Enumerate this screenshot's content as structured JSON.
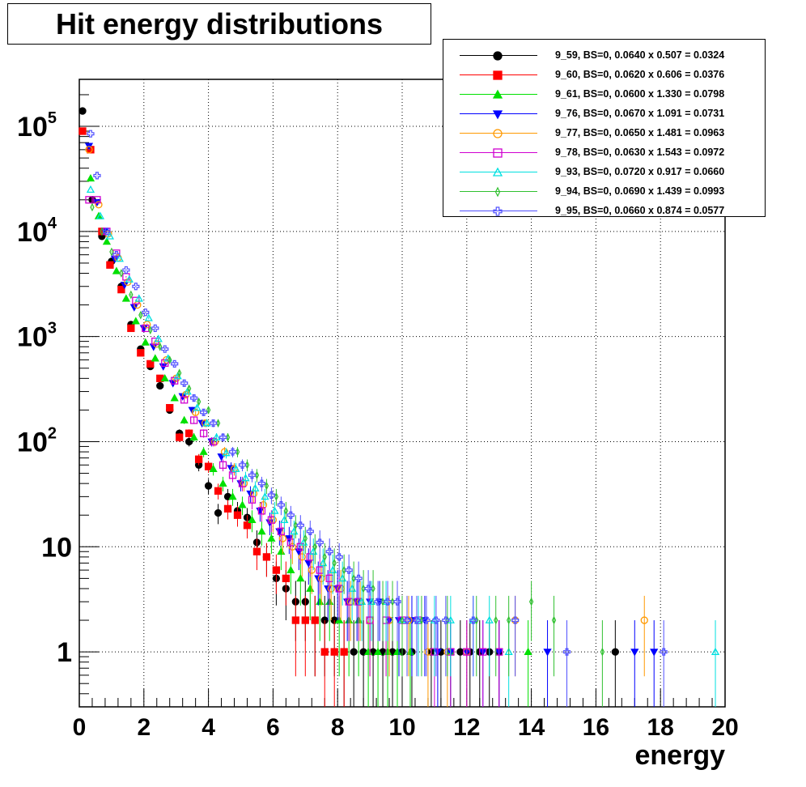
{
  "chart_data": {
    "type": "scatter",
    "title": "Hit energy distributions",
    "xlabel": "energy",
    "ylabel": "",
    "xlim": [
      0,
      20
    ],
    "ylim": [
      0.3,
      280000
    ],
    "yscale": "log",
    "grid": true,
    "legend_placement": "top-right",
    "x_ticks": [
      "0",
      "2",
      "4",
      "6",
      "8",
      "10",
      "12",
      "14",
      "16",
      "18",
      "20"
    ],
    "y_ticks": [
      {
        "value": 1,
        "base": "1",
        "exp": ""
      },
      {
        "value": 10,
        "base": "10",
        "exp": ""
      },
      {
        "value": 100,
        "base": "10",
        "exp": "2"
      },
      {
        "value": 1000,
        "base": "10",
        "exp": "3"
      },
      {
        "value": 10000,
        "base": "10",
        "exp": "4"
      },
      {
        "value": 100000,
        "base": "10",
        "exp": "5"
      }
    ],
    "series": [
      {
        "name": "9_59, BS=0, 0.0640 x 0.507 = 0.0324",
        "color": "#000000",
        "marker": "circle-filled",
        "x": [
          0.1,
          0.4,
          0.7,
          1.0,
          1.3,
          1.6,
          1.9,
          2.2,
          2.5,
          2.8,
          3.1,
          3.4,
          3.7,
          4.0,
          4.3,
          4.6,
          4.9,
          5.2,
          5.5,
          5.8,
          6.1,
          6.4,
          6.7,
          7.0,
          7.3,
          7.6,
          7.9,
          8.2,
          8.5,
          8.8,
          9.1,
          9.4,
          9.7,
          10.0,
          10.3,
          10.9,
          11.2,
          11.5,
          11.8,
          12.1,
          12.4,
          12.7,
          13.0,
          16.6
        ],
        "y": [
          140000,
          20000,
          9000,
          5200,
          3000,
          1300,
          760,
          520,
          340,
          200,
          120,
          100,
          60,
          38,
          21,
          30,
          22,
          19,
          11,
          8,
          5,
          4,
          3,
          3,
          2,
          2,
          2,
          1,
          1,
          1,
          1,
          1,
          1,
          1,
          1,
          1,
          1,
          1,
          1,
          1,
          1,
          1,
          1,
          1
        ]
      },
      {
        "name": "9_60, BS=0, 0.0620 x 0.606 = 0.0376",
        "color": "#ff0000",
        "marker": "square-filled",
        "x": [
          0.1,
          0.35,
          0.7,
          0.95,
          1.3,
          1.6,
          1.9,
          2.2,
          2.5,
          2.8,
          3.1,
          3.4,
          3.7,
          4.0,
          4.3,
          4.6,
          4.9,
          5.2,
          5.5,
          5.8,
          6.1,
          6.4,
          6.7,
          7.0,
          7.3,
          7.6,
          7.9,
          8.2
        ],
        "y": [
          90000,
          60000,
          10000,
          4800,
          2800,
          1200,
          700,
          550,
          400,
          210,
          110,
          120,
          68,
          58,
          34,
          23,
          20,
          16,
          9,
          8,
          6,
          5,
          2,
          2,
          2,
          1,
          1,
          1
        ]
      },
      {
        "name": "9_61, BS=0, 0.0600 x 1.330 = 0.0798",
        "color": "#00e000",
        "marker": "triangle-up-filled",
        "x": [
          0.35,
          0.6,
          0.85,
          1.15,
          1.45,
          1.75,
          2.05,
          2.35,
          2.65,
          2.95,
          3.25,
          3.55,
          3.85,
          4.15,
          4.45,
          4.75,
          5.05,
          5.35,
          5.65,
          5.95,
          6.25,
          6.55,
          6.85,
          7.15,
          7.45,
          7.75,
          8.05,
          8.35,
          8.65,
          8.95,
          9.25,
          9.55,
          9.85,
          10.25,
          11.5,
          13.9
        ],
        "y": [
          32000,
          14000,
          8000,
          4200,
          2300,
          1400,
          880,
          620,
          400,
          260,
          160,
          110,
          80,
          55,
          40,
          30,
          25,
          18,
          14,
          12,
          9,
          6,
          5,
          4,
          3,
          3,
          2,
          2,
          2,
          1,
          1,
          1,
          1,
          1,
          1,
          1
        ]
      },
      {
        "name": "9_76, BS=0, 0.0670 x 1.091 = 0.0731",
        "color": "#0000ff",
        "marker": "triangle-down-filled",
        "x": [
          0.3,
          0.55,
          0.8,
          1.1,
          1.4,
          1.7,
          2.0,
          2.3,
          2.6,
          2.9,
          3.2,
          3.5,
          3.8,
          4.1,
          4.4,
          4.7,
          5.0,
          5.3,
          5.6,
          5.9,
          6.2,
          6.5,
          6.8,
          7.1,
          7.4,
          7.7,
          8.0,
          8.3,
          8.6,
          9.0,
          9.3,
          9.6,
          9.9,
          10.3,
          10.7,
          11.1,
          11.5,
          12.0,
          12.5,
          13.0,
          14.5,
          17.2,
          17.8
        ],
        "y": [
          65000,
          19000,
          10000,
          5500,
          3100,
          1900,
          1200,
          800,
          520,
          360,
          270,
          200,
          150,
          100,
          72,
          56,
          40,
          32,
          22,
          17,
          14,
          12,
          9,
          7,
          5,
          4,
          4,
          3,
          3,
          3,
          3,
          2,
          2,
          2,
          2,
          1,
          1,
          1,
          1,
          1,
          1,
          1,
          1
        ]
      },
      {
        "name": "9_77, BS=0, 0.0650 x 1.481 = 0.0963",
        "color": "#ff9900",
        "marker": "circle-open",
        "x": [
          0.3,
          0.6,
          0.9,
          1.2,
          1.5,
          1.8,
          2.1,
          2.4,
          2.7,
          3.0,
          3.3,
          3.6,
          3.9,
          4.2,
          4.5,
          4.8,
          5.1,
          5.4,
          5.7,
          6.0,
          6.3,
          6.6,
          6.9,
          7.2,
          7.5,
          7.8,
          8.1,
          8.4,
          8.7,
          9.0,
          9.6,
          10.2,
          10.8,
          11.4,
          12.0,
          13.5,
          17.5
        ],
        "y": [
          60000,
          18000,
          9500,
          5600,
          3300,
          2000,
          1300,
          850,
          600,
          400,
          280,
          190,
          150,
          100,
          80,
          55,
          40,
          32,
          25,
          18,
          12,
          10,
          8,
          6,
          5,
          4,
          4,
          3,
          3,
          2,
          2,
          2,
          1,
          1,
          1,
          2,
          2
        ]
      },
      {
        "name": "9_78, BS=0, 0.0630 x 1.543 = 0.0972",
        "color": "#d000d0",
        "marker": "square-open",
        "x": [
          0.3,
          0.55,
          0.85,
          1.15,
          1.45,
          1.75,
          2.05,
          2.35,
          2.65,
          2.95,
          3.25,
          3.55,
          3.85,
          4.15,
          4.45,
          4.75,
          5.05,
          5.35,
          5.65,
          5.95,
          6.25,
          6.55,
          6.85,
          7.15,
          7.45,
          7.75,
          8.05,
          8.35,
          8.65,
          9.0,
          9.5,
          10.0,
          10.5,
          11.0,
          11.5,
          12.0,
          12.5,
          13.0
        ],
        "y": [
          20000,
          20000,
          10000,
          6200,
          3700,
          2200,
          1200,
          900,
          560,
          380,
          250,
          160,
          120,
          100,
          60,
          48,
          40,
          28,
          22,
          18,
          14,
          11,
          10,
          8,
          6,
          5,
          4,
          3,
          3,
          2,
          2,
          2,
          2,
          1,
          1,
          1,
          1,
          1
        ]
      },
      {
        "name": "9_93, BS=0, 0.0720 x 0.917 = 0.0660",
        "color": "#00e0e0",
        "marker": "triangle-up-open",
        "x": [
          0.35,
          0.65,
          0.95,
          1.25,
          1.55,
          1.85,
          2.15,
          2.45,
          2.75,
          3.05,
          3.35,
          3.65,
          3.95,
          4.25,
          4.55,
          4.85,
          5.15,
          5.45,
          5.75,
          6.05,
          6.35,
          6.65,
          6.95,
          7.25,
          7.55,
          7.85,
          8.15,
          8.45,
          8.75,
          9.05,
          9.5,
          10.0,
          10.5,
          11.0,
          11.5,
          12.2,
          12.7,
          13.3,
          19.7
        ],
        "y": [
          25000,
          14000,
          9000,
          5500,
          3500,
          2300,
          1500,
          950,
          620,
          420,
          300,
          210,
          150,
          110,
          78,
          55,
          45,
          36,
          30,
          22,
          18,
          14,
          11,
          9,
          7,
          6,
          5,
          4,
          3,
          3,
          3,
          2,
          2,
          2,
          2,
          2,
          2,
          1,
          1
        ]
      },
      {
        "name": "9_94, BS=0, 0.0690 x 1.439 = 0.0993",
        "color": "#30c030",
        "marker": "diamond-open",
        "x": [
          0.4,
          0.7,
          1.0,
          1.3,
          1.6,
          1.9,
          2.2,
          2.5,
          2.8,
          3.1,
          3.4,
          3.7,
          4.0,
          4.3,
          4.6,
          4.9,
          5.2,
          5.5,
          5.8,
          6.1,
          6.4,
          6.7,
          7.0,
          7.3,
          7.6,
          7.9,
          8.2,
          8.5,
          8.8,
          9.1,
          9.4,
          9.7,
          10.0,
          10.6,
          11.4,
          12.3,
          12.9,
          13.3,
          14.0,
          14.7,
          16.2
        ],
        "y": [
          17000,
          10000,
          6400,
          4000,
          2500,
          1600,
          1150,
          800,
          600,
          450,
          320,
          240,
          200,
          150,
          110,
          80,
          60,
          48,
          38,
          30,
          22,
          16,
          12,
          10,
          8,
          7,
          6,
          5,
          4,
          4,
          3,
          3,
          2,
          2,
          2,
          2,
          2,
          2,
          3,
          2,
          1
        ]
      },
      {
        "name": "9_95, BS=0, 0.0660 x 0.874 = 0.0577",
        "color": "#5050ff",
        "marker": "cross-open",
        "x": [
          0.35,
          0.55,
          0.85,
          1.15,
          1.45,
          1.75,
          2.05,
          2.35,
          2.65,
          2.95,
          3.25,
          3.55,
          3.85,
          4.15,
          4.45,
          4.75,
          5.05,
          5.35,
          5.65,
          5.95,
          6.25,
          6.55,
          6.85,
          7.15,
          7.45,
          7.75,
          8.05,
          8.35,
          8.65,
          8.95,
          9.25,
          9.55,
          9.85,
          10.15,
          10.45,
          10.75,
          11.05,
          11.35,
          12.2,
          13.5,
          15.1,
          18.1
        ],
        "y": [
          85000,
          34000,
          10000,
          6000,
          4300,
          3000,
          1700,
          1200,
          760,
          550,
          360,
          260,
          190,
          150,
          110,
          80,
          60,
          48,
          40,
          31,
          25,
          20,
          16,
          14,
          11,
          9,
          8,
          6,
          5,
          4,
          3,
          3,
          3,
          2,
          2,
          2,
          2,
          2,
          2,
          2,
          1,
          1
        ]
      }
    ]
  }
}
